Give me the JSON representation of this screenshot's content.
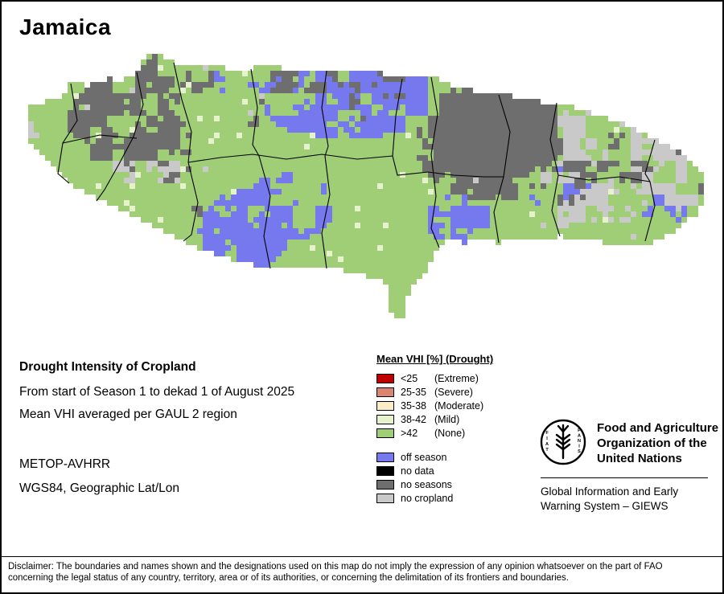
{
  "title": "Jamaica",
  "info": {
    "heading": "Drought Intensity of Cropland",
    "period": "From start of Season 1 to dekad 1 of August 2025",
    "aggregation": "Mean VHI averaged per GAUL 2 region",
    "sensor": "METOP-AVHRR",
    "projection": "WGS84, Geographic Lat/Lon"
  },
  "legend": {
    "title": "Mean VHI [%] (Drought)",
    "vhi_classes": [
      {
        "label": "<25",
        "qualifier": "(Extreme)",
        "color": "#c00000"
      },
      {
        "label": "25-35",
        "qualifier": "(Severe)",
        "color": "#dc8472"
      },
      {
        "label": "35-38",
        "qualifier": "(Moderate)",
        "color": "#fdecc8"
      },
      {
        "label": "38-42",
        "qualifier": "(Mild)",
        "color": "#e6f2cc"
      },
      {
        "label": ">42",
        "qualifier": "(None)",
        "color": "#9fce77"
      }
    ],
    "coverage_classes": [
      {
        "label": "off season",
        "color": "#7678ee"
      },
      {
        "label": "no data",
        "color": "#000000"
      },
      {
        "label": "no seasons",
        "color": "#6e6e6e"
      },
      {
        "label": "no cropland",
        "color": "#c9c9c9"
      }
    ]
  },
  "map": {
    "colors": {
      "none": "#9fce77",
      "off_season": "#7678ee",
      "no_data": "#000000",
      "no_seasons": "#6e6e6e",
      "no_cropland": "#c9c9c9",
      "mild": "#e6f2cc"
    }
  },
  "org": {
    "name_lines": [
      "Food and Agriculture",
      "Organization of the",
      "United Nations"
    ],
    "motto": "FIAT PANIS",
    "system": "Global Information and Early Warning System – GIEWS"
  },
  "disclaimer": "Disclaimer: The boundaries and names shown and the designations used on this map do not imply the expression of any opinion whatsoever on the part of FAO concerning the legal status of any country, territory, area or of its authorities, or concerning the delimitation of its frontiers and boundaries."
}
